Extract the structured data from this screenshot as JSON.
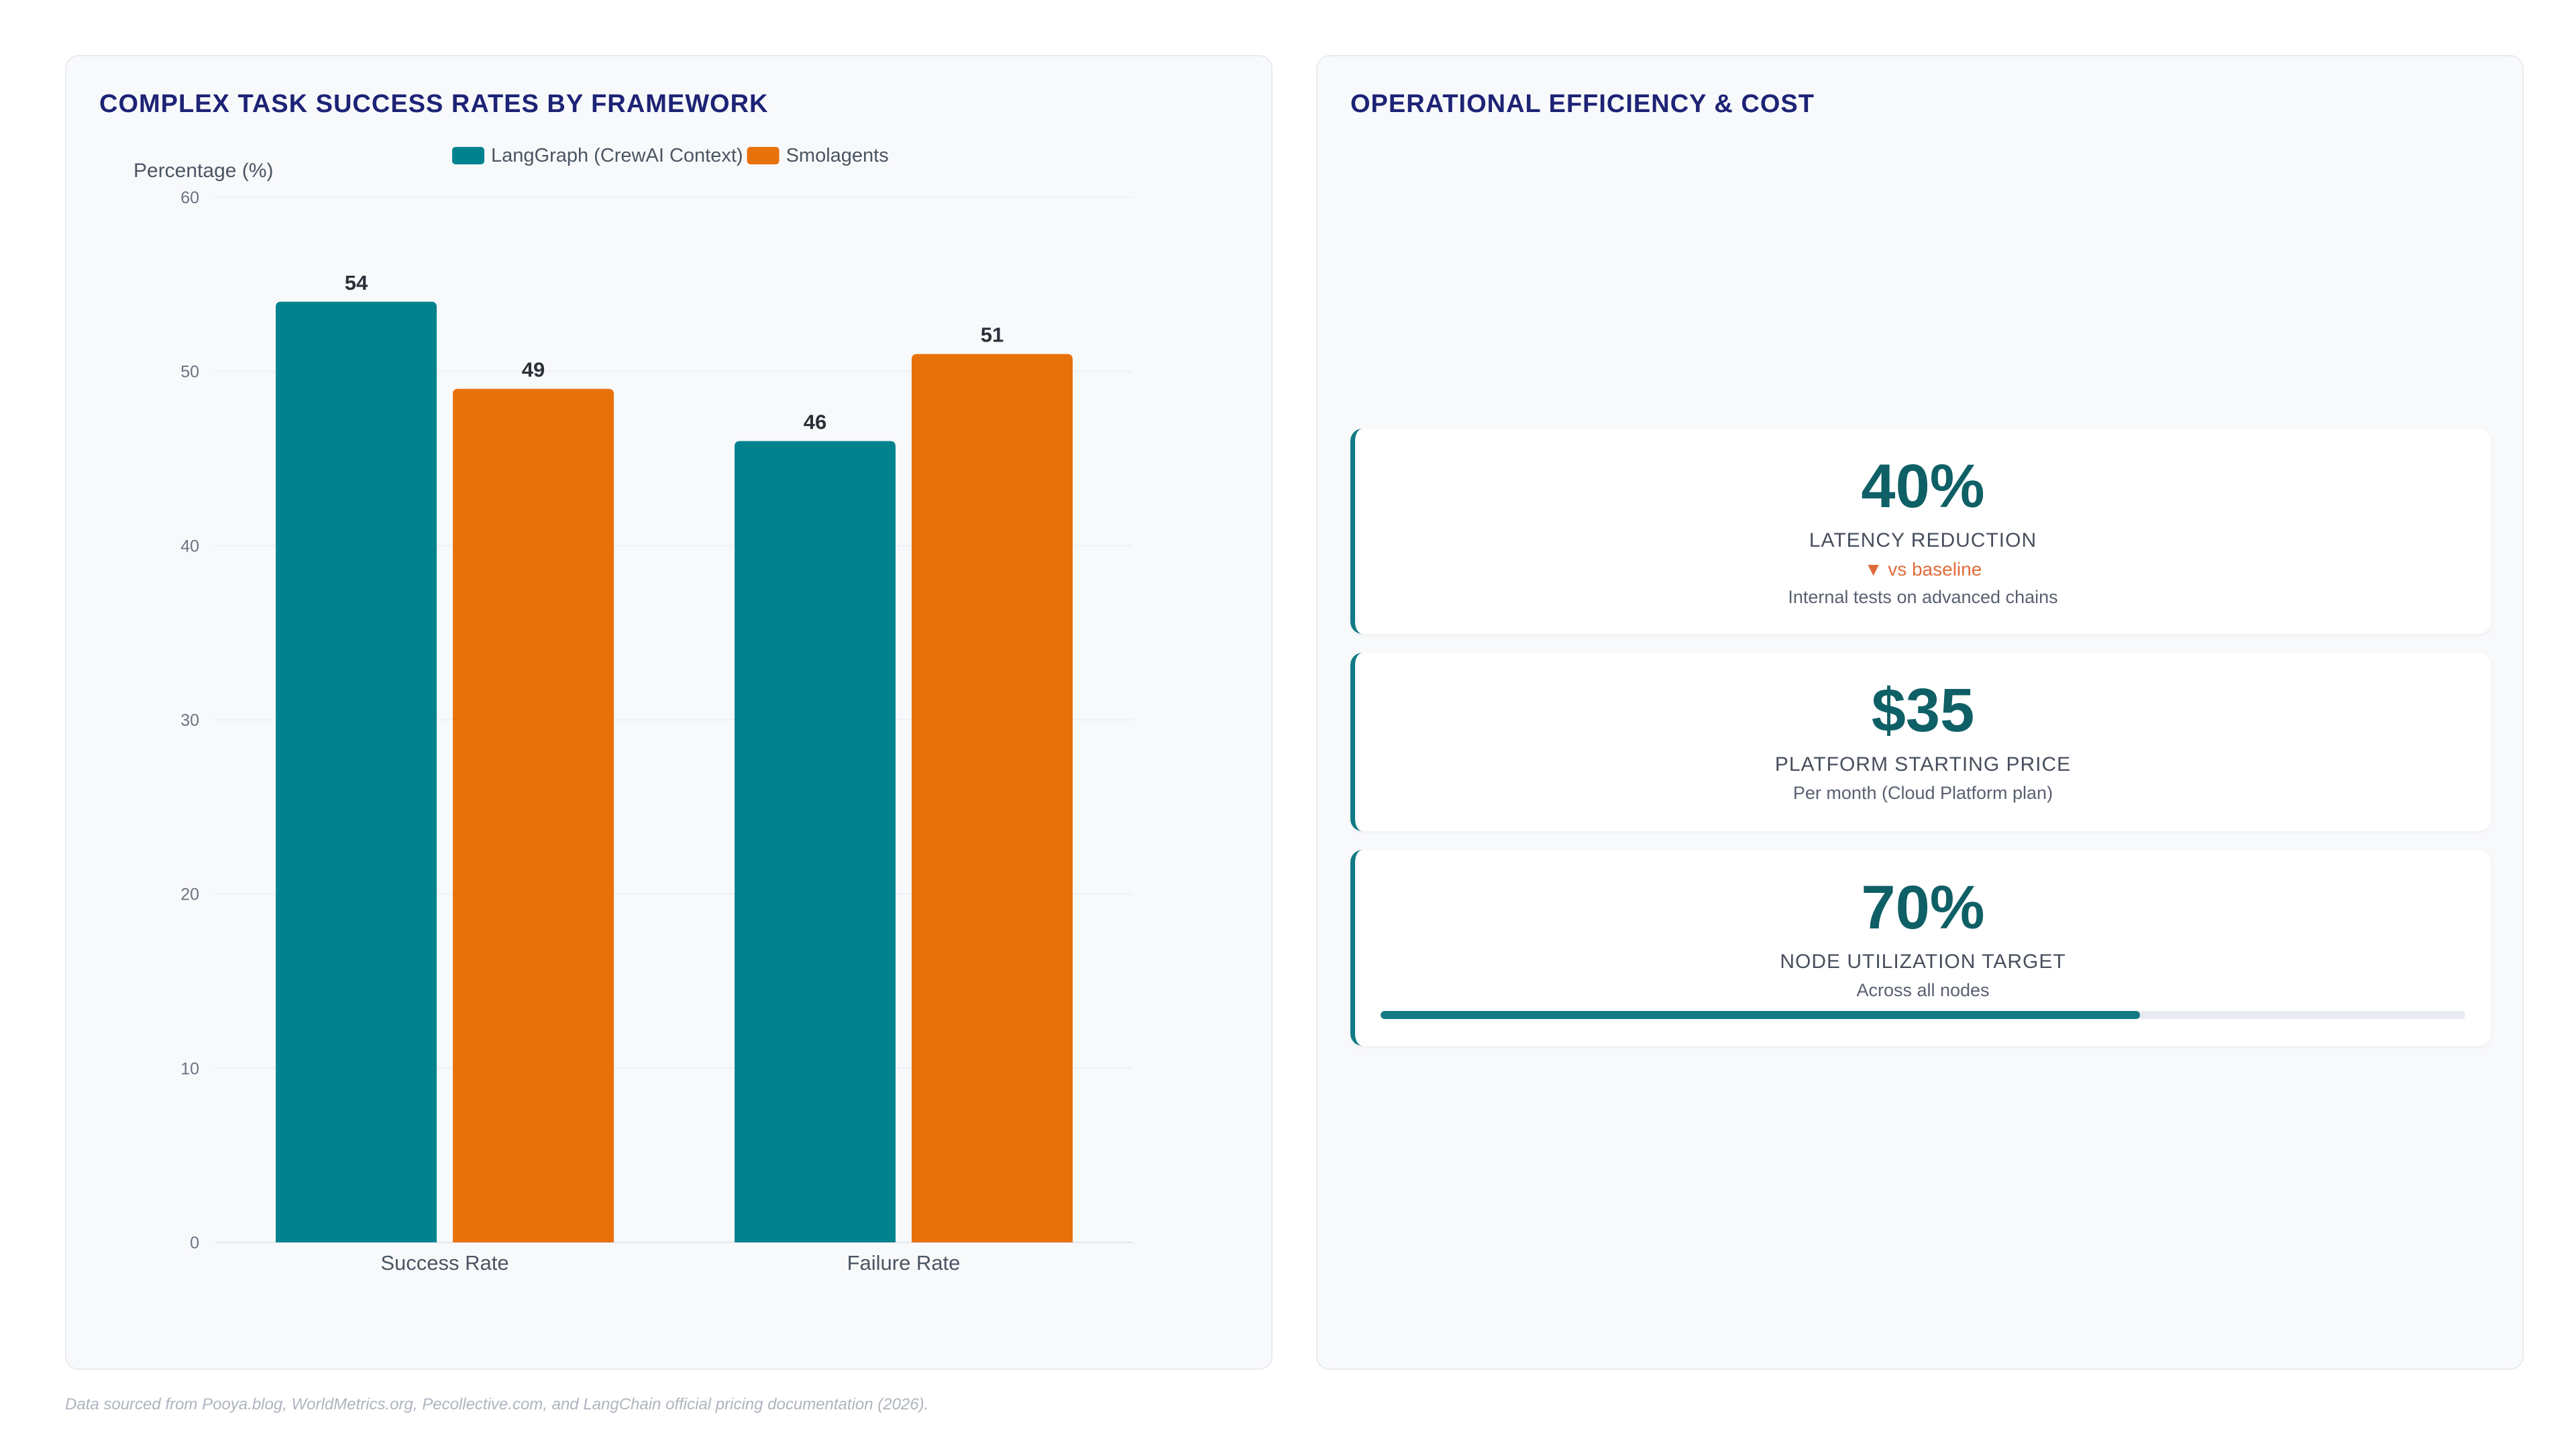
{
  "chart_panel": {
    "title": "COMPLEX TASK SUCCESS RATES BY FRAMEWORK"
  },
  "chart_data": {
    "type": "bar",
    "title": "COMPLEX TASK SUCCESS RATES BY FRAMEWORK",
    "categories": [
      "Success Rate",
      "Failure Rate"
    ],
    "series": [
      {
        "name": "LangGraph (CrewAI Context)",
        "values": [
          54,
          46
        ],
        "color": "#00838f"
      },
      {
        "name": "Smolagents",
        "values": [
          49,
          51
        ],
        "color": "#e8710a"
      }
    ],
    "xlabel": "",
    "ylabel": "Percentage (%)",
    "ylim": [
      0,
      60
    ],
    "yticks": [
      0,
      10,
      20,
      30,
      40,
      50,
      60
    ],
    "grid": true,
    "legend": "top",
    "data_labels": true
  },
  "metrics_panel": {
    "title": "OPERATIONAL EFFICIENCY & COST",
    "cards": [
      {
        "value": "40%",
        "label": "LATENCY REDUCTION",
        "note": "▼ vs baseline",
        "sub": "Internal tests on advanced chains"
      },
      {
        "value": "$35",
        "label": "PLATFORM STARTING PRICE",
        "sub": "Per month (Cloud Platform plan)"
      },
      {
        "value": "70%",
        "label": "NODE UTILIZATION TARGET",
        "sub": "Across all nodes",
        "progress": 0.7
      }
    ]
  },
  "footer": {
    "source": "Data sourced from Pooya.blog, WorldMetrics.org, Pecollective.com, and LangChain official pricing documentation (2026)."
  },
  "colors": {
    "accent_teal": "#117a85",
    "accent_orange": "#e8710a",
    "title_navy": "#1d2375"
  }
}
